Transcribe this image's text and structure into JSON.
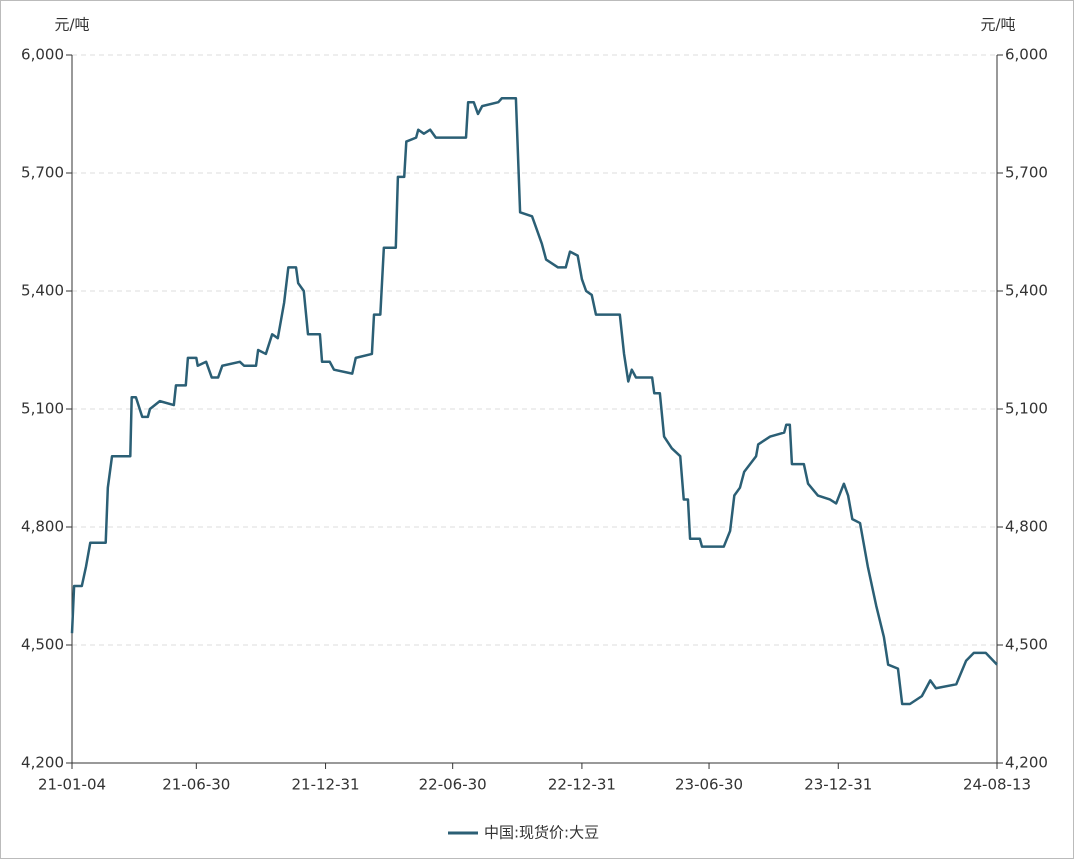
{
  "chart_data": {
    "type": "line",
    "y_label": "元/吨",
    "x": [
      "21-01-04",
      "21-01-07",
      "21-01-18",
      "21-01-24",
      "21-01-30",
      "21-02-21",
      "21-02-24",
      "21-03-02",
      "21-03-28",
      "21-03-30",
      "21-04-05",
      "21-04-14",
      "21-04-22",
      "21-04-25",
      "21-05-09",
      "21-05-29",
      "21-06-01",
      "21-06-15",
      "21-06-18",
      "21-06-30",
      "21-07-02",
      "21-07-14",
      "21-07-22",
      "21-07-31",
      "21-08-06",
      "21-08-31",
      "21-09-06",
      "21-09-23",
      "21-09-26",
      "21-10-07",
      "21-10-16",
      "21-10-24",
      "21-11-02",
      "21-11-08",
      "21-11-19",
      "21-11-22",
      "21-11-30",
      "21-12-06",
      "21-12-23",
      "21-12-26",
      "22-01-06",
      "22-01-12",
      "22-02-07",
      "22-02-12",
      "22-03-07",
      "22-03-10",
      "22-03-19",
      "22-03-24",
      "22-04-10",
      "22-04-13",
      "22-04-22",
      "22-04-25",
      "22-05-09",
      "22-05-12",
      "22-05-20",
      "22-05-29",
      "22-06-06",
      "22-07-19",
      "22-07-22",
      "22-07-30",
      "22-08-05",
      "22-08-11",
      "22-09-03",
      "22-09-08",
      "22-09-28",
      "22-10-04",
      "22-10-21",
      "22-10-27",
      "22-11-04",
      "22-11-10",
      "22-11-27",
      "22-12-08",
      "22-12-14",
      "22-12-25",
      "22-12-31",
      "23-01-06",
      "23-01-14",
      "23-01-20",
      "23-02-23",
      "23-03-01",
      "23-03-07",
      "23-03-12",
      "23-03-18",
      "23-04-10",
      "23-04-13",
      "23-04-21",
      "23-04-27",
      "23-05-08",
      "23-05-20",
      "23-05-25",
      "23-05-31",
      "23-06-03",
      "23-06-17",
      "23-06-20",
      "23-07-21",
      "23-07-30",
      "23-08-05",
      "23-08-13",
      "23-08-19",
      "23-09-05",
      "23-09-08",
      "23-09-25",
      "23-10-15",
      "23-10-18",
      "23-10-23",
      "23-10-26",
      "23-11-12",
      "23-11-18",
      "23-12-02",
      "23-12-19",
      "23-12-28",
      "24-01-08",
      "24-01-14",
      "24-01-20",
      "24-01-31",
      "24-02-11",
      "24-02-23",
      "24-03-05",
      "24-03-11",
      "24-03-25",
      "24-03-31",
      "24-04-11",
      "24-04-28",
      "24-05-10",
      "24-05-18",
      "24-06-16",
      "24-06-30",
      "24-07-11",
      "24-07-28",
      "24-08-13"
    ],
    "series": [
      {
        "name": "中国:现货价:大豆",
        "color": "#2b5f75",
        "values": [
          4530,
          4650,
          4650,
          4700,
          4760,
          4760,
          4900,
          4980,
          4980,
          5130,
          5130,
          5080,
          5080,
          5100,
          5120,
          5110,
          5160,
          5160,
          5230,
          5230,
          5210,
          5220,
          5180,
          5180,
          5210,
          5220,
          5210,
          5210,
          5250,
          5240,
          5290,
          5280,
          5370,
          5460,
          5460,
          5420,
          5400,
          5290,
          5290,
          5220,
          5220,
          5200,
          5190,
          5230,
          5240,
          5340,
          5340,
          5510,
          5510,
          5690,
          5690,
          5780,
          5790,
          5810,
          5800,
          5810,
          5790,
          5790,
          5880,
          5880,
          5850,
          5870,
          5880,
          5890,
          5890,
          5600,
          5590,
          5560,
          5520,
          5480,
          5460,
          5460,
          5500,
          5490,
          5430,
          5400,
          5390,
          5340,
          5340,
          5240,
          5170,
          5200,
          5180,
          5180,
          5140,
          5140,
          5030,
          5000,
          4980,
          4870,
          4870,
          4770,
          4770,
          4750,
          4750,
          4790,
          4880,
          4900,
          4940,
          4980,
          5010,
          5030,
          5040,
          5060,
          5060,
          4960,
          4960,
          4910,
          4880,
          4870,
          4860,
          4910,
          4880,
          4820,
          4810,
          4700,
          4600,
          4520,
          4450,
          4440,
          4350,
          4350,
          4370,
          4410,
          4390,
          4400,
          4460,
          4480,
          4480,
          4450
        ]
      }
    ],
    "xlim": [
      "21-01-04",
      "24-08-13"
    ],
    "xticks": [
      "21-01-04",
      "21-06-30",
      "21-12-31",
      "22-06-30",
      "22-12-31",
      "23-06-30",
      "23-12-31",
      "24-08-13"
    ],
    "ylim": [
      4200,
      6000
    ],
    "yticks": [
      {
        "value": 4200,
        "label": "4,200"
      },
      {
        "value": 4500,
        "label": "4,500"
      },
      {
        "value": 4800,
        "label": "4,800"
      },
      {
        "value": 5100,
        "label": "5,100"
      },
      {
        "value": 5400,
        "label": "5,400"
      },
      {
        "value": 5700,
        "label": "5,700"
      },
      {
        "value": 6000,
        "label": "6,000"
      }
    ],
    "grid": true,
    "legend": "bottom"
  }
}
